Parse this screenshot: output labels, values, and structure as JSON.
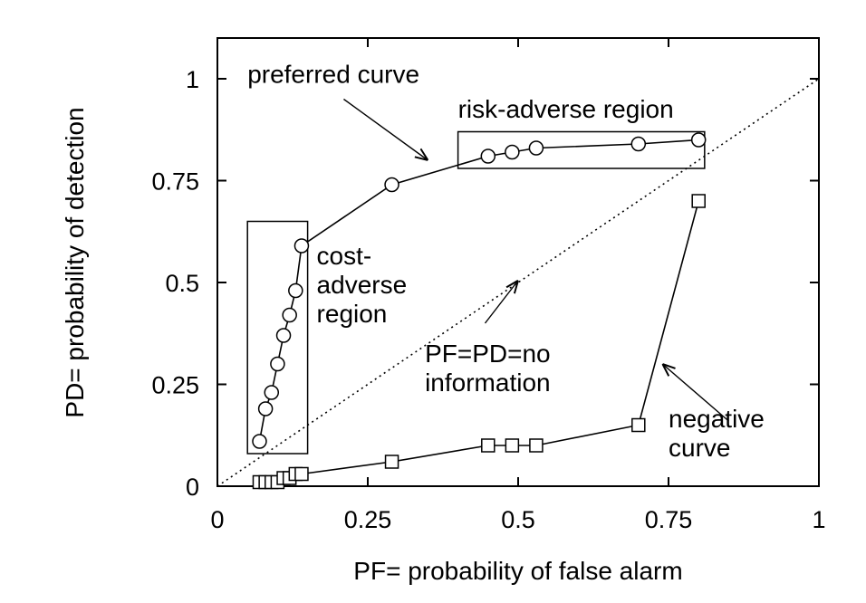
{
  "chart_data": {
    "type": "scatter",
    "xlabel": "PF= probability of false alarm",
    "ylabel": "PD= probability of detection",
    "xlim": [
      0,
      1
    ],
    "ylim": [
      0,
      1.1
    ],
    "grid": false,
    "x_ticks": [
      "0",
      "0.25",
      "0.5",
      "0.75",
      "1"
    ],
    "y_ticks": [
      "0",
      "0.25",
      "0.5",
      "0.75",
      "1"
    ],
    "x_tick_values": [
      0,
      0.25,
      0.5,
      0.75,
      1
    ],
    "y_tick_values": [
      0,
      0.25,
      0.5,
      0.75,
      1
    ],
    "series": [
      {
        "marker": "circle",
        "line": "solid",
        "points": [
          [
            0.07,
            0.11
          ],
          [
            0.08,
            0.19
          ],
          [
            0.09,
            0.23
          ],
          [
            0.1,
            0.3
          ],
          [
            0.11,
            0.37
          ],
          [
            0.12,
            0.42
          ],
          [
            0.13,
            0.48
          ],
          [
            0.14,
            0.59
          ],
          [
            0.29,
            0.74
          ],
          [
            0.45,
            0.81
          ],
          [
            0.49,
            0.82
          ],
          [
            0.53,
            0.83
          ],
          [
            0.7,
            0.84
          ],
          [
            0.8,
            0.85
          ]
        ]
      },
      {
        "marker": "square",
        "line": "solid",
        "points": [
          [
            0.07,
            0.01
          ],
          [
            0.08,
            0.01
          ],
          [
            0.09,
            0.01
          ],
          [
            0.1,
            0.01
          ],
          [
            0.11,
            0.02
          ],
          [
            0.12,
            0.02
          ],
          [
            0.13,
            0.03
          ],
          [
            0.14,
            0.03
          ],
          [
            0.29,
            0.06
          ],
          [
            0.45,
            0.1
          ],
          [
            0.49,
            0.1
          ],
          [
            0.53,
            0.1
          ],
          [
            0.7,
            0.15
          ],
          [
            0.8,
            0.7
          ]
        ]
      },
      {
        "marker": "none",
        "line": "dotted",
        "points": [
          [
            0,
            0
          ],
          [
            1,
            1
          ]
        ]
      }
    ],
    "regions": [
      {
        "label": "risk-adverse region",
        "x": [
          0.4,
          0.81
        ],
        "y": [
          0.78,
          0.87
        ]
      },
      {
        "label": "cost-adverse region",
        "x": [
          0.05,
          0.15
        ],
        "y": [
          0.08,
          0.65
        ]
      }
    ],
    "annotations": [
      {
        "lines": [
          "preferred curve"
        ],
        "text_at": [
          0.05,
          0.99
        ],
        "arrow_from": [
          0.21,
          0.95
        ],
        "arrow_to": [
          0.35,
          0.8
        ]
      },
      {
        "lines": [
          "risk-adverse region"
        ],
        "text_at": [
          0.4,
          0.905
        ],
        "arrow_from": null,
        "arrow_to": null
      },
      {
        "lines": [
          "cost-",
          "adverse",
          "region"
        ],
        "text_at": [
          0.165,
          0.545
        ],
        "arrow_from": null,
        "arrow_to": null
      },
      {
        "lines": [
          "PF=PD=no",
          "information"
        ],
        "text_at": [
          0.345,
          0.305
        ],
        "arrow_from": [
          0.445,
          0.4
        ],
        "arrow_to": [
          0.5,
          0.505
        ]
      },
      {
        "lines": [
          "negative",
          "curve"
        ],
        "text_at": [
          0.75,
          0.145
        ],
        "arrow_from": [
          0.85,
          0.16
        ],
        "arrow_to": [
          0.74,
          0.3
        ]
      }
    ]
  }
}
